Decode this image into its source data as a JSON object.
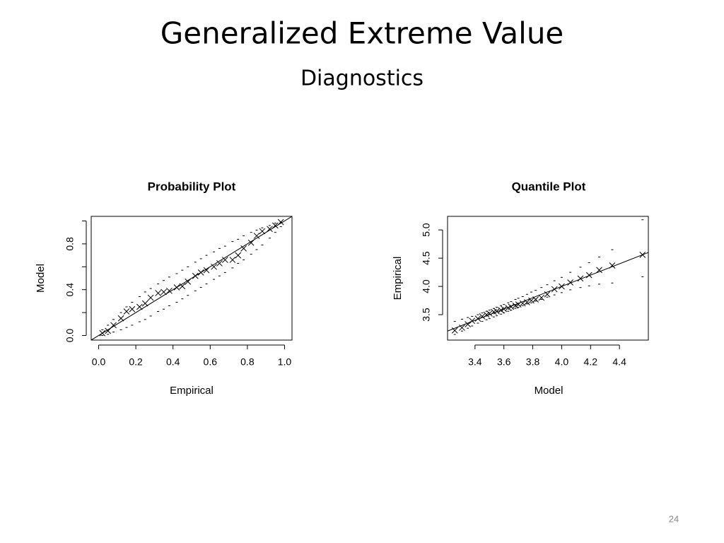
{
  "header": {
    "title": "Generalized Extreme Value",
    "subtitle": "Diagnostics"
  },
  "page_number": "24",
  "chart_data": [
    {
      "type": "scatter",
      "title": "Probability Plot",
      "xlabel": "Empirical",
      "ylabel": "Model",
      "xlim": [
        -0.04,
        1.04
      ],
      "ylim": [
        -0.04,
        1.04
      ],
      "xticks": [
        {
          "value": 0,
          "label": "0.0"
        },
        0.2,
        0.4,
        0.6,
        0.8,
        {
          "value": 1,
          "label": "1.0"
        }
      ],
      "yticks": [
        {
          "value": 0,
          "label": "0.0"
        },
        0.4,
        0.8
      ],
      "yticks_minor": [
        0.2,
        0.6,
        1.0
      ],
      "diagonal": true,
      "color": "#000000",
      "x": [
        0.02,
        0.05,
        0.08,
        0.12,
        0.15,
        0.18,
        0.22,
        0.25,
        0.28,
        0.32,
        0.35,
        0.38,
        0.42,
        0.45,
        0.48,
        0.52,
        0.55,
        0.58,
        0.62,
        0.65,
        0.68,
        0.72,
        0.75,
        0.78,
        0.82,
        0.85,
        0.88,
        0.92,
        0.95,
        0.98
      ],
      "series": [
        {
          "marker": "x",
          "values": [
            0.02,
            0.04,
            0.09,
            0.15,
            0.21,
            0.23,
            0.25,
            0.28,
            0.33,
            0.37,
            0.38,
            0.39,
            0.42,
            0.43,
            0.47,
            0.52,
            0.55,
            0.57,
            0.6,
            0.63,
            0.66,
            0.66,
            0.7,
            0.76,
            0.81,
            0.87,
            0.91,
            0.93,
            0.96,
            0.99
          ]
        },
        {
          "marker": "-",
          "values": [
            0.05,
            0.09,
            0.14,
            0.2,
            0.25,
            0.29,
            0.34,
            0.38,
            0.41,
            0.45,
            0.48,
            0.51,
            0.54,
            0.57,
            0.6,
            0.64,
            0.67,
            0.7,
            0.73,
            0.76,
            0.78,
            0.82,
            0.84,
            0.87,
            0.9,
            0.92,
            0.94,
            0.96,
            0.98,
            0.99
          ]
        },
        {
          "marker": "-",
          "values": [
            0.0,
            0.01,
            0.03,
            0.05,
            0.07,
            0.09,
            0.12,
            0.14,
            0.17,
            0.21,
            0.23,
            0.26,
            0.29,
            0.32,
            0.35,
            0.39,
            0.42,
            0.45,
            0.49,
            0.52,
            0.55,
            0.59,
            0.63,
            0.66,
            0.71,
            0.75,
            0.79,
            0.85,
            0.9,
            0.95
          ]
        }
      ]
    },
    {
      "type": "scatter",
      "title": "Quantile Plot",
      "xlabel": "Model",
      "ylabel": "Empirical",
      "xlim": [
        3.21,
        4.6
      ],
      "ylim": [
        3.05,
        5.24
      ],
      "xticks": [
        3.4,
        3.6,
        3.8,
        {
          "value": 4,
          "label": "4.0"
        },
        4.2,
        4.4
      ],
      "yticks": [
        3.5,
        {
          "value": 4,
          "label": "4.0"
        },
        4.5,
        {
          "value": 5,
          "label": "5.0"
        }
      ],
      "diagonal": true,
      "color": "#000000",
      "x": [
        3.26,
        3.31,
        3.35,
        3.38,
        3.42,
        3.45,
        3.48,
        3.5,
        3.53,
        3.55,
        3.58,
        3.6,
        3.63,
        3.65,
        3.68,
        3.7,
        3.73,
        3.76,
        3.79,
        3.82,
        3.86,
        3.9,
        3.95,
        4.0,
        4.06,
        4.13,
        4.19,
        4.26,
        4.35,
        4.56
      ],
      "series": [
        {
          "marker": "x",
          "values": [
            3.22,
            3.27,
            3.33,
            3.39,
            3.43,
            3.47,
            3.5,
            3.52,
            3.55,
            3.56,
            3.58,
            3.6,
            3.62,
            3.64,
            3.66,
            3.68,
            3.7,
            3.72,
            3.75,
            3.77,
            3.8,
            3.86,
            3.95,
            4.0,
            4.07,
            4.14,
            4.2,
            4.29,
            4.37,
            4.56
          ]
        },
        {
          "marker": "-",
          "values": [
            3.38,
            3.42,
            3.45,
            3.47,
            3.5,
            3.53,
            3.56,
            3.58,
            3.61,
            3.63,
            3.66,
            3.68,
            3.71,
            3.73,
            3.77,
            3.79,
            3.82,
            3.86,
            3.9,
            3.93,
            3.98,
            4.03,
            4.1,
            4.16,
            4.25,
            4.34,
            4.42,
            4.52,
            4.65,
            5.18
          ]
        },
        {
          "marker": "-",
          "values": [
            3.15,
            3.21,
            3.26,
            3.3,
            3.35,
            3.38,
            3.41,
            3.43,
            3.46,
            3.48,
            3.51,
            3.53,
            3.56,
            3.58,
            3.61,
            3.63,
            3.66,
            3.69,
            3.71,
            3.74,
            3.77,
            3.81,
            3.85,
            3.89,
            3.94,
            3.98,
            4.01,
            4.04,
            4.06,
            4.17
          ]
        }
      ]
    }
  ]
}
